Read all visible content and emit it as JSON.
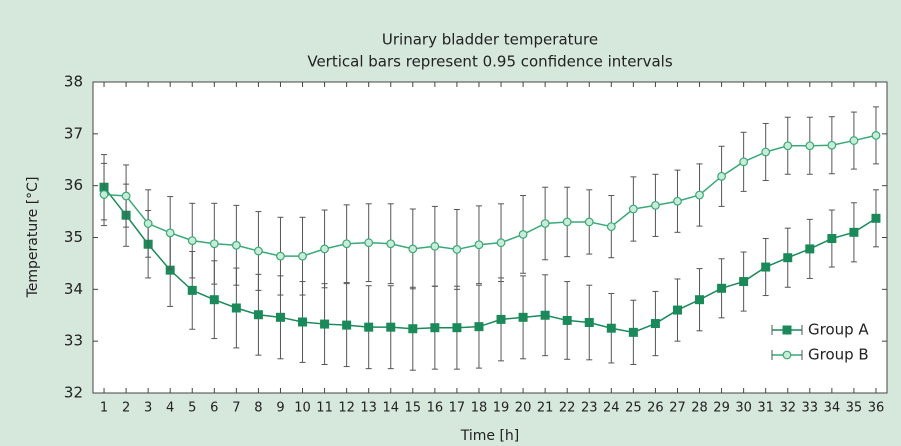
{
  "chart_data": {
    "type": "line",
    "title": "Urinary bladder temperature",
    "subtitle": "Vertical bars represent 0.95 confidence intervals",
    "x_label": "Time [h]",
    "y_label": "Temperature [°C]",
    "x": [
      1,
      2,
      3,
      4,
      5,
      6,
      7,
      8,
      9,
      10,
      11,
      12,
      13,
      14,
      15,
      16,
      17,
      18,
      19,
      20,
      21,
      22,
      23,
      24,
      25,
      26,
      27,
      28,
      29,
      30,
      31,
      32,
      33,
      34,
      35,
      36
    ],
    "xlim": [
      0.5,
      36.5
    ],
    "xticks": [
      1,
      2,
      3,
      4,
      5,
      6,
      7,
      8,
      9,
      10,
      11,
      12,
      13,
      14,
      15,
      16,
      17,
      18,
      19,
      20,
      21,
      22,
      23,
      24,
      25,
      26,
      27,
      28,
      29,
      30,
      31,
      32,
      33,
      34,
      35,
      36
    ],
    "ylim": [
      32,
      38
    ],
    "yticks": [
      32,
      33,
      34,
      35,
      36,
      37,
      38
    ],
    "legend": "lower right",
    "series": [
      {
        "name": "Group A",
        "color": "#1b8a5a",
        "marker": "square",
        "values": [
          35.97,
          35.43,
          34.87,
          34.37,
          33.98,
          33.8,
          33.64,
          33.51,
          33.46,
          33.37,
          33.33,
          33.31,
          33.27,
          33.27,
          33.24,
          33.26,
          33.26,
          33.28,
          33.42,
          33.46,
          33.5,
          33.4,
          33.36,
          33.25,
          33.17,
          33.34,
          33.6,
          33.8,
          34.02,
          34.15,
          34.43,
          34.61,
          34.78,
          34.98,
          35.1,
          35.37
        ],
        "errors": [
          0.63,
          0.6,
          0.65,
          0.7,
          0.75,
          0.75,
          0.77,
          0.78,
          0.8,
          0.78,
          0.78,
          0.8,
          0.8,
          0.8,
          0.8,
          0.8,
          0.8,
          0.8,
          0.8,
          0.8,
          0.78,
          0.75,
          0.72,
          0.67,
          0.62,
          0.62,
          0.6,
          0.6,
          0.57,
          0.57,
          0.55,
          0.57,
          0.57,
          0.55,
          0.57,
          0.55
        ]
      },
      {
        "name": "Group B",
        "color": "#3aa878",
        "marker": "circle",
        "values": [
          35.83,
          35.8,
          35.27,
          35.09,
          34.94,
          34.88,
          34.85,
          34.74,
          34.64,
          34.64,
          34.78,
          34.88,
          34.9,
          34.88,
          34.78,
          34.83,
          34.77,
          34.86,
          34.9,
          35.06,
          35.27,
          35.3,
          35.3,
          35.21,
          35.55,
          35.62,
          35.7,
          35.82,
          36.18,
          36.46,
          36.65,
          36.77,
          36.77,
          36.78,
          36.87,
          36.97
        ],
        "errors": [
          0.6,
          0.6,
          0.65,
          0.7,
          0.72,
          0.78,
          0.77,
          0.76,
          0.75,
          0.75,
          0.75,
          0.75,
          0.75,
          0.77,
          0.77,
          0.77,
          0.77,
          0.75,
          0.75,
          0.75,
          0.7,
          0.67,
          0.62,
          0.6,
          0.62,
          0.6,
          0.6,
          0.6,
          0.58,
          0.57,
          0.55,
          0.55,
          0.55,
          0.55,
          0.55,
          0.55
        ]
      }
    ]
  }
}
